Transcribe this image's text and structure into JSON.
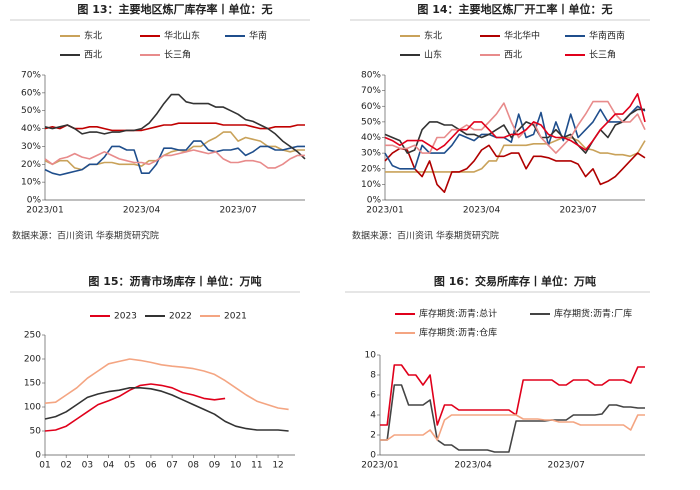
{
  "chart_data": [
    {
      "type": "line",
      "title": "图 13：主要地区炼厂库存率丨单位：无",
      "source": "数据来源：百川资讯  华泰期货研究院",
      "categories": [
        "2023/01",
        null,
        null,
        null,
        null,
        null,
        null,
        null,
        null,
        null,
        null,
        null,
        null,
        "2023/04",
        null,
        null,
        null,
        null,
        null,
        null,
        null,
        null,
        null,
        null,
        null,
        null,
        "2023/07",
        null,
        null,
        null,
        null,
        null,
        null,
        null,
        null,
        null
      ],
      "series": [
        {
          "name": "东北",
          "color": "#c9a25a",
          "values": [
            22,
            20,
            22,
            22,
            18,
            17,
            20,
            20,
            21,
            21,
            20,
            20,
            20,
            19,
            22,
            22,
            25,
            27,
            28,
            27,
            30,
            30,
            33,
            35,
            38,
            38,
            33,
            35,
            34,
            33,
            30,
            30,
            28,
            27,
            28,
            28
          ]
        },
        {
          "name": "华北山东",
          "color": "#c00000",
          "values": [
            40,
            41,
            40,
            42,
            40,
            40,
            41,
            41,
            40,
            39,
            39,
            39,
            39,
            39,
            40,
            41,
            42,
            42,
            43,
            43,
            43,
            43,
            43,
            43,
            42,
            42,
            42,
            42,
            41,
            40,
            40,
            41,
            41,
            41,
            42,
            42
          ]
        },
        {
          "name": "华南",
          "color": "#1f4e8c",
          "values": [
            17,
            15,
            14,
            15,
            16,
            17,
            20,
            20,
            24,
            30,
            30,
            28,
            28,
            15,
            15,
            20,
            29,
            29,
            28,
            28,
            33,
            33,
            28,
            27,
            28,
            28,
            29,
            25,
            27,
            30,
            30,
            28,
            28,
            29,
            30,
            30
          ]
        },
        {
          "name": "西北",
          "color": "#333333",
          "values": [
            41,
            40,
            41,
            42,
            40,
            37,
            38,
            38,
            37,
            38,
            38,
            39,
            39,
            40,
            43,
            48,
            54,
            59,
            59,
            55,
            54,
            54,
            54,
            52,
            52,
            50,
            48,
            45,
            44,
            42,
            40,
            37,
            33,
            30,
            27,
            23
          ]
        },
        {
          "name": "长三角",
          "color": "#e88b8b",
          "values": [
            23,
            20,
            23,
            24,
            26,
            24,
            23,
            25,
            27,
            25,
            23,
            22,
            21,
            21,
            20,
            22,
            25,
            25,
            26,
            27,
            28,
            27,
            26,
            27,
            23,
            21,
            21,
            22,
            22,
            21,
            18,
            18,
            20,
            23,
            25,
            25
          ]
        }
      ],
      "ylim": [
        0,
        70
      ],
      "yticks": [
        {
          "value": 0,
          "label": "0%"
        },
        {
          "value": 10,
          "label": "10%"
        },
        {
          "value": 20,
          "label": "20%"
        },
        {
          "value": 30,
          "label": "30%"
        },
        {
          "value": 40,
          "label": "40%"
        },
        {
          "value": 50,
          "label": "50%"
        },
        {
          "value": 60,
          "label": "60%"
        },
        {
          "value": 70,
          "label": "70%"
        }
      ]
    },
    {
      "type": "line",
      "title": "图 14：主要地区炼厂开工率丨单位：无",
      "source": "数据来源：百川资讯  华泰期货研究院",
      "categories": [
        "2023/01",
        null,
        null,
        null,
        null,
        null,
        null,
        null,
        null,
        null,
        null,
        null,
        null,
        "2023/04",
        null,
        null,
        null,
        null,
        null,
        null,
        null,
        null,
        null,
        null,
        null,
        null,
        "2023/07",
        null,
        null,
        null,
        null,
        null,
        null,
        null,
        null,
        null
      ],
      "series": [
        {
          "name": "东北",
          "color": "#c9a25a",
          "values": [
            18,
            18,
            18,
            18,
            18,
            18,
            18,
            18,
            18,
            18,
            18,
            18,
            18,
            20,
            25,
            25,
            35,
            35,
            35,
            35,
            36,
            36,
            36,
            38,
            40,
            40,
            38,
            33,
            32,
            30,
            30,
            29,
            29,
            28,
            30,
            38
          ]
        },
        {
          "name": "华北华中",
          "color": "#b00000",
          "values": [
            25,
            30,
            33,
            32,
            20,
            15,
            25,
            10,
            5,
            18,
            18,
            20,
            25,
            32,
            35,
            28,
            28,
            30,
            30,
            20,
            28,
            28,
            27,
            25,
            25,
            25,
            23,
            15,
            20,
            10,
            12,
            15,
            20,
            25,
            30,
            27
          ]
        },
        {
          "name": "华南西南",
          "color": "#1f4e8c",
          "values": [
            30,
            22,
            20,
            20,
            20,
            35,
            30,
            30,
            30,
            35,
            42,
            40,
            38,
            42,
            42,
            40,
            40,
            37,
            55,
            40,
            42,
            56,
            35,
            50,
            38,
            55,
            40,
            45,
            50,
            58,
            50,
            50,
            50,
            55,
            60,
            57
          ]
        },
        {
          "name": "山东",
          "color": "#333333",
          "values": [
            42,
            40,
            38,
            30,
            32,
            45,
            50,
            50,
            48,
            48,
            45,
            42,
            42,
            40,
            42,
            45,
            48,
            40,
            45,
            50,
            48,
            40,
            40,
            45,
            40,
            42,
            35,
            30,
            38,
            45,
            40,
            48,
            50,
            55,
            58,
            58
          ]
        },
        {
          "name": "西北",
          "color": "#e88b8b",
          "values": [
            35,
            35,
            33,
            33,
            35,
            30,
            30,
            40,
            40,
            45,
            45,
            48,
            45,
            45,
            50,
            55,
            62,
            50,
            40,
            45,
            50,
            40,
            35,
            30,
            35,
            40,
            48,
            55,
            63,
            63,
            63,
            55,
            50,
            50,
            55,
            45
          ]
        },
        {
          "name": "长三角",
          "color": "#e0001b",
          "values": [
            40,
            38,
            35,
            38,
            38,
            38,
            35,
            32,
            35,
            40,
            45,
            45,
            50,
            50,
            45,
            40,
            40,
            42,
            42,
            45,
            50,
            48,
            42,
            40,
            40,
            38,
            35,
            32,
            38,
            45,
            50,
            55,
            55,
            60,
            68,
            50
          ]
        }
      ],
      "ylim": [
        0,
        80
      ],
      "yticks": [
        {
          "value": 0,
          "label": "0%"
        },
        {
          "value": 10,
          "label": "10%"
        },
        {
          "value": 20,
          "label": "20%"
        },
        {
          "value": 30,
          "label": "30%"
        },
        {
          "value": 40,
          "label": "40%"
        },
        {
          "value": 50,
          "label": "50%"
        },
        {
          "value": 60,
          "label": "60%"
        },
        {
          "value": 70,
          "label": "70%"
        },
        {
          "value": 80,
          "label": "80%"
        }
      ]
    },
    {
      "type": "line",
      "title": "图 15：沥青市场库存丨单位：万吨",
      "x": [
        1,
        1.5,
        2,
        2.5,
        3,
        3.5,
        4,
        4.5,
        5,
        5.5,
        6,
        6.5,
        7,
        7.5,
        8,
        8.5,
        9,
        9.5,
        10,
        10.5,
        11,
        11.5,
        12,
        12.5
      ],
      "series": [
        {
          "name": "2023",
          "color": "#e0001b",
          "values": [
            50,
            52,
            60,
            75,
            90,
            105,
            113,
            122,
            135,
            145,
            148,
            145,
            140,
            130,
            125,
            118,
            115,
            118,
            null,
            null,
            null,
            null,
            null,
            null
          ]
        },
        {
          "name": "2022",
          "color": "#333333",
          "values": [
            75,
            80,
            90,
            105,
            120,
            127,
            132,
            135,
            140,
            140,
            138,
            133,
            125,
            115,
            105,
            95,
            85,
            70,
            60,
            55,
            52,
            52,
            52,
            50
          ]
        },
        {
          "name": "2021",
          "color": "#f4a582",
          "values": [
            108,
            110,
            125,
            140,
            160,
            175,
            190,
            195,
            200,
            197,
            193,
            188,
            185,
            183,
            180,
            175,
            168,
            155,
            140,
            125,
            112,
            105,
            98,
            95
          ]
        }
      ],
      "xlim": [
        1,
        12.8
      ],
      "xticks": [
        {
          "value": 1,
          "label": "01"
        },
        {
          "value": 2,
          "label": "02"
        },
        {
          "value": 3,
          "label": "03"
        },
        {
          "value": 4,
          "label": "04"
        },
        {
          "value": 5,
          "label": "05"
        },
        {
          "value": 6,
          "label": "06"
        },
        {
          "value": 7,
          "label": "07"
        },
        {
          "value": 8,
          "label": "08"
        },
        {
          "value": 9,
          "label": "09"
        },
        {
          "value": 10,
          "label": "10"
        },
        {
          "value": 11,
          "label": "11"
        },
        {
          "value": 12,
          "label": "12"
        }
      ],
      "ylim": [
        0,
        250
      ],
      "yticks": [
        0,
        50,
        100,
        150,
        200,
        250
      ]
    },
    {
      "type": "line",
      "title": "图 16：交易所库存丨单位：万吨",
      "categories": [
        "2023/01",
        null,
        null,
        null,
        null,
        null,
        null,
        null,
        null,
        null,
        null,
        null,
        null,
        "2023/04",
        null,
        null,
        null,
        null,
        null,
        null,
        null,
        null,
        null,
        null,
        null,
        null,
        "2023/07",
        null,
        null,
        null,
        null,
        null,
        null,
        null,
        null,
        null,
        null,
        null
      ],
      "series": [
        {
          "name": "库存期货:沥青:总计",
          "color": "#e0001b",
          "values": [
            3,
            3,
            9,
            9,
            8,
            8,
            7,
            8,
            3,
            5,
            5,
            4.5,
            4.5,
            4.5,
            4.5,
            4.5,
            4.5,
            4.5,
            4.5,
            4,
            7.5,
            7.5,
            7.5,
            7.5,
            7.5,
            7,
            7,
            7.5,
            7.5,
            7.5,
            7,
            7,
            7.5,
            7.5,
            7.5,
            7.2,
            8.8,
            8.8
          ]
        },
        {
          "name": "库存期货:沥青:厂库",
          "color": "#444444",
          "values": [
            1.5,
            1.5,
            7,
            7,
            5,
            5,
            5,
            5.5,
            1.5,
            1,
            1,
            0.5,
            0.5,
            0.5,
            0.5,
            0.5,
            0.3,
            0.3,
            0.3,
            3.4,
            3.4,
            3.4,
            3.4,
            3.4,
            3.5,
            3.5,
            3.5,
            4,
            4,
            4,
            4,
            4.1,
            5,
            5,
            4.8,
            4.8,
            4.7,
            4.7
          ]
        },
        {
          "name": "库存期货:沥青:仓库",
          "color": "#f4a582",
          "values": [
            1.5,
            1.5,
            2,
            2,
            2,
            2,
            2,
            2.5,
            1.5,
            3.5,
            4,
            4,
            4,
            4,
            4,
            4,
            4,
            4,
            4,
            4,
            3.6,
            3.6,
            3.6,
            3.5,
            3.5,
            3.3,
            3.3,
            3.3,
            3,
            3,
            3,
            3,
            3,
            3,
            3,
            2.5,
            4,
            4
          ]
        }
      ],
      "ylim": [
        0,
        10
      ],
      "yticks": [
        0,
        2,
        4,
        6,
        8,
        10
      ]
    }
  ]
}
